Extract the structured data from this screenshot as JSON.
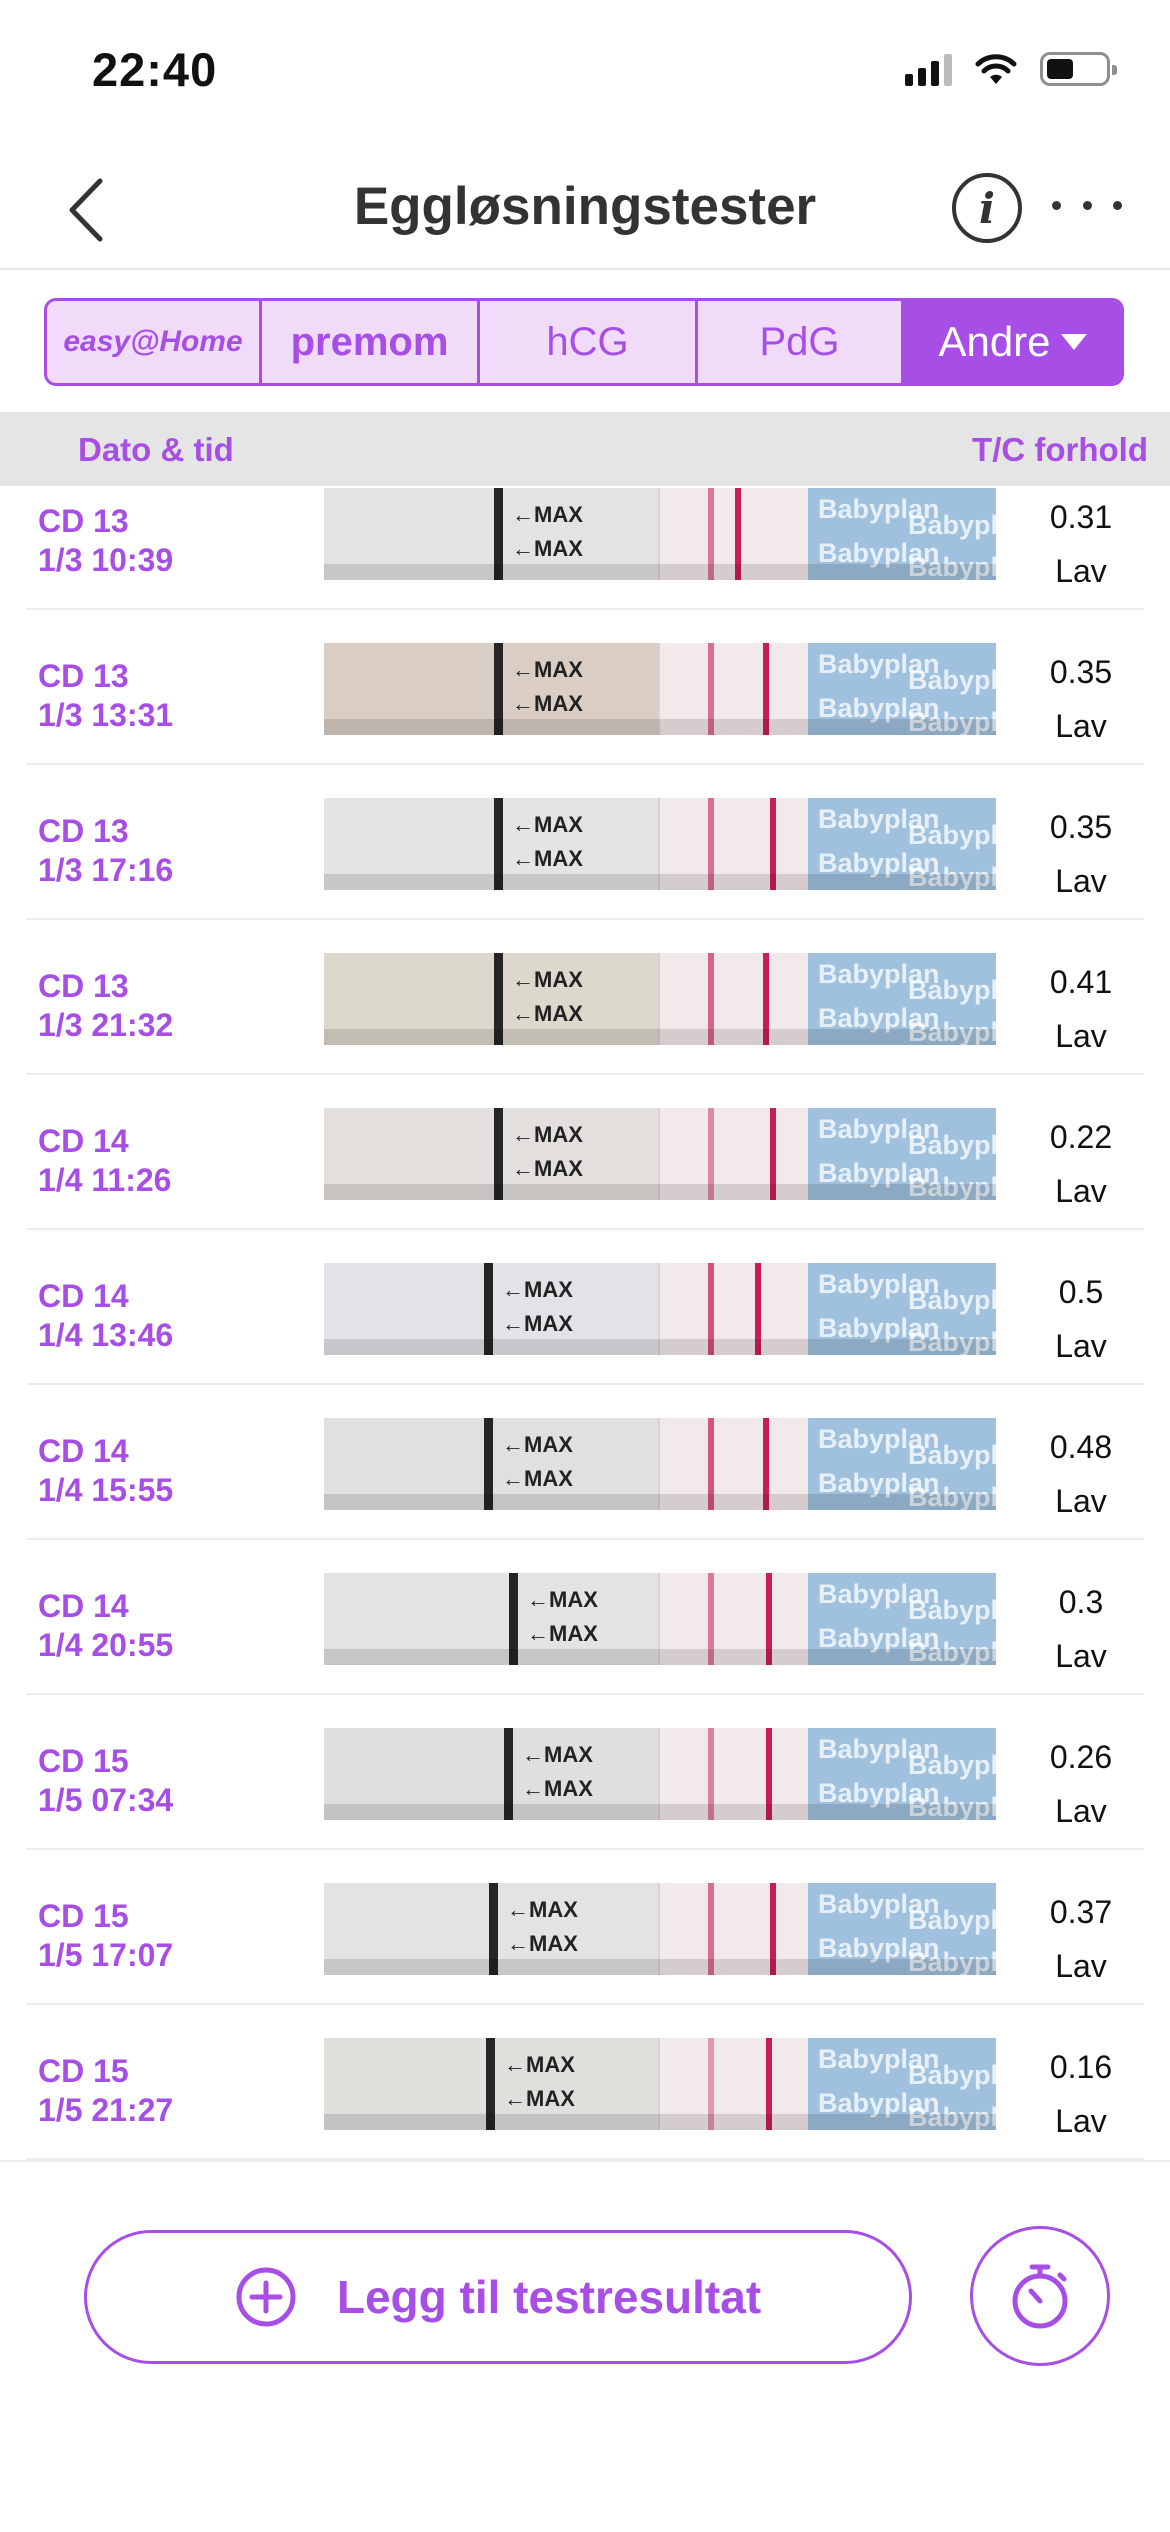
{
  "status_bar": {
    "time": "22:40"
  },
  "header": {
    "title": "Eggløsningstester",
    "info_label": "i"
  },
  "tabs": [
    {
      "label": "easy@Home"
    },
    {
      "label": "premom"
    },
    {
      "label": "hCG"
    },
    {
      "label": "PdG"
    },
    {
      "label": "Andre",
      "selected": true
    }
  ],
  "columns": {
    "date": "Dato & tid",
    "ratio": "T/C forhold"
  },
  "strip_labels": {
    "max": "←MAX",
    "brand": "Babyplan"
  },
  "rows": [
    {
      "cd": "CD 13",
      "datetime": "1/3 10:39",
      "ratio": "0.31",
      "level": "Lav"
    },
    {
      "cd": "CD 13",
      "datetime": "1/3 13:31",
      "ratio": "0.35",
      "level": "Lav"
    },
    {
      "cd": "CD 13",
      "datetime": "1/3 17:16",
      "ratio": "0.35",
      "level": "Lav"
    },
    {
      "cd": "CD 13",
      "datetime": "1/3 21:32",
      "ratio": "0.41",
      "level": "Lav"
    },
    {
      "cd": "CD 14",
      "datetime": "1/4 11:26",
      "ratio": "0.22",
      "level": "Lav"
    },
    {
      "cd": "CD 14",
      "datetime": "1/4 13:46",
      "ratio": "0.5",
      "level": "Lav"
    },
    {
      "cd": "CD 14",
      "datetime": "1/4 15:55",
      "ratio": "0.48",
      "level": "Lav"
    },
    {
      "cd": "CD 14",
      "datetime": "1/4 20:55",
      "ratio": "0.3",
      "level": "Lav"
    },
    {
      "cd": "CD 15",
      "datetime": "1/5 07:34",
      "ratio": "0.26",
      "level": "Lav"
    },
    {
      "cd": "CD 15",
      "datetime": "1/5 17:07",
      "ratio": "0.37",
      "level": "Lav"
    },
    {
      "cd": "CD 15",
      "datetime": "1/5 21:27",
      "ratio": "0.16",
      "level": "Lav"
    }
  ],
  "footer": {
    "add_label": "Legg til testresultat"
  },
  "colors": {
    "accent": "#a64ee6",
    "test_line": "#c91c5a",
    "strip_pad": "#9fc1dd"
  }
}
